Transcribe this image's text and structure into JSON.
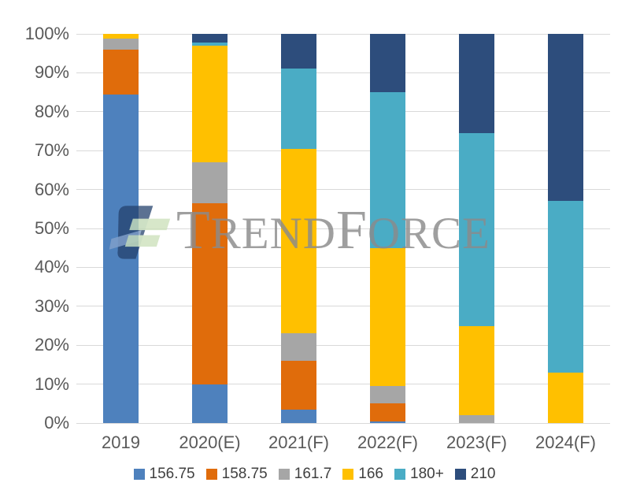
{
  "watermark": {
    "brand_t": "T",
    "brand_rend": "REND",
    "brand_f": "F",
    "brand_orce": "ORCE"
  },
  "chart_data": {
    "type": "bar",
    "stacked": true,
    "percent_stacked": true,
    "title": "",
    "xlabel": "",
    "ylabel": "",
    "categories": [
      "2019",
      "2020(E)",
      "2021(F)",
      "2022(F)",
      "2023(F)",
      "2024(F)"
    ],
    "series": [
      {
        "name": "156.75",
        "color": "#4e81bd",
        "values": [
          84.5,
          10.0,
          3.5,
          0.5,
          0.0,
          0.0
        ]
      },
      {
        "name": "158.75",
        "color": "#e06c0b",
        "values": [
          11.5,
          46.5,
          12.5,
          4.5,
          0.0,
          0.0
        ]
      },
      {
        "name": "161.7",
        "color": "#a6a6a6",
        "values": [
          2.8,
          10.5,
          7.0,
          4.5,
          2.0,
          0.0
        ]
      },
      {
        "name": "166",
        "color": "#ffc000",
        "values": [
          1.2,
          30.0,
          47.5,
          35.5,
          23.0,
          13.0
        ]
      },
      {
        "name": "180+",
        "color": "#4aacc5",
        "values": [
          0.0,
          0.7,
          20.5,
          40.0,
          49.5,
          44.0
        ]
      },
      {
        "name": "210",
        "color": "#2d4d7c",
        "values": [
          0.0,
          2.3,
          9.0,
          15.0,
          25.5,
          43.0
        ]
      }
    ],
    "y_ticks": [
      "0%",
      "10%",
      "20%",
      "30%",
      "40%",
      "50%",
      "60%",
      "70%",
      "80%",
      "90%",
      "100%"
    ],
    "ylim": [
      0,
      100
    ],
    "grid": true,
    "gridline_color": "#d9d9d9",
    "axis_text_color": "#595959",
    "legend_position": "bottom"
  }
}
